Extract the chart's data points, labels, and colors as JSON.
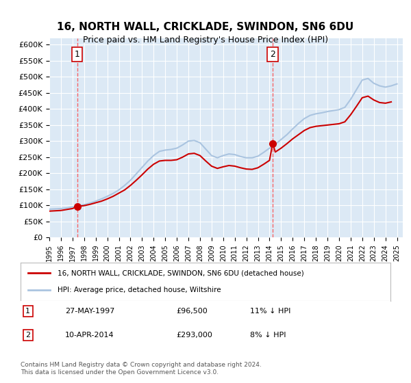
{
  "title": "16, NORTH WALL, CRICKLADE, SWINDON, SN6 6DU",
  "subtitle": "Price paid vs. HM Land Registry's House Price Index (HPI)",
  "ylabel_ticks": [
    "£0",
    "£50K",
    "£100K",
    "£150K",
    "£200K",
    "£250K",
    "£300K",
    "£350K",
    "£400K",
    "£450K",
    "£500K",
    "£550K",
    "£600K"
  ],
  "ytick_values": [
    0,
    50000,
    100000,
    150000,
    200000,
    250000,
    300000,
    350000,
    400000,
    450000,
    500000,
    550000,
    600000
  ],
  "ylim": [
    0,
    620000
  ],
  "xlim_start": 1995.0,
  "xlim_end": 2025.5,
  "background_color": "#dce9f5",
  "plot_bg_color": "#dce9f5",
  "grid_color": "#ffffff",
  "sale1_date": 1997.4,
  "sale1_price": 96500,
  "sale1_label": "1",
  "sale2_date": 2014.27,
  "sale2_price": 293000,
  "sale2_label": "2",
  "hpi_color": "#aac4e0",
  "price_color": "#cc0000",
  "dashed_color": "#ff4444",
  "legend_label1": "16, NORTH WALL, CRICKLADE, SWINDON, SN6 6DU (detached house)",
  "legend_label2": "HPI: Average price, detached house, Wiltshire",
  "info1_num": "1",
  "info1_date": "27-MAY-1997",
  "info1_price": "£96,500",
  "info1_hpi": "11% ↓ HPI",
  "info2_num": "2",
  "info2_date": "10-APR-2014",
  "info2_price": "£293,000",
  "info2_hpi": "8% ↓ HPI",
  "footer": "Contains HM Land Registry data © Crown copyright and database right 2024.\nThis data is licensed under the Open Government Licence v3.0.",
  "xtick_years": [
    1995,
    1996,
    1997,
    1998,
    1999,
    2000,
    2001,
    2002,
    2003,
    2004,
    2005,
    2006,
    2007,
    2008,
    2009,
    2010,
    2011,
    2012,
    2013,
    2014,
    2015,
    2016,
    2017,
    2018,
    2019,
    2020,
    2021,
    2022,
    2023,
    2024,
    2025
  ]
}
